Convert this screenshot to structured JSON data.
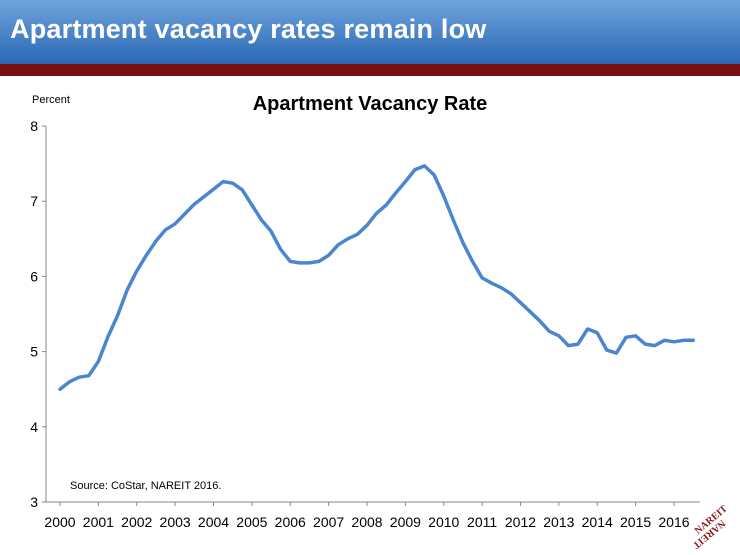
{
  "banner": {
    "title": "Apartment vacancy rates remain low"
  },
  "colors": {
    "banner_top": "#6fa3dc",
    "banner_bottom": "#2a68b4",
    "stripe": "#7a0f12",
    "line": "#4a86d0",
    "logo": "#8b1a1a"
  },
  "logo": {
    "text": "NAREIT",
    "icon": "nareit-logo"
  },
  "chart_data": {
    "type": "line",
    "title": "Apartment Vacancy Rate",
    "ylabel": "Percent",
    "xlabel": "",
    "source": "Source: CoStar, NAREIT 2016.",
    "ylim": [
      3,
      8
    ],
    "xlim": [
      2000,
      2016.6
    ],
    "y_ticks": [
      3,
      4,
      5,
      6,
      7,
      8
    ],
    "x_ticks": [
      "2000",
      "2001",
      "2002",
      "2003",
      "2004",
      "2005",
      "2006",
      "2007",
      "2008",
      "2009",
      "2010",
      "2011",
      "2012",
      "2013",
      "2014",
      "2015",
      "2016"
    ],
    "grid": false,
    "legend": "none",
    "series": [
      {
        "x": [
          2000,
          2000.25,
          2000.5,
          2000.75,
          2001,
          2001.25,
          2001.5,
          2001.75,
          2002,
          2002.25,
          2002.5,
          2002.75,
          2003,
          2003.25,
          2003.5,
          2003.75,
          2004,
          2004.25,
          2004.5,
          2004.75,
          2005,
          2005.25,
          2005.5,
          2005.75,
          2006,
          2006.25,
          2006.5,
          2006.75,
          2007,
          2007.25,
          2007.5,
          2007.75,
          2008,
          2008.25,
          2008.5,
          2008.75,
          2009,
          2009.25,
          2009.5,
          2009.75,
          2010,
          2010.25,
          2010.5,
          2010.75,
          2011,
          2011.25,
          2011.5,
          2011.75,
          2012,
          2012.25,
          2012.5,
          2012.75,
          2013,
          2013.25,
          2013.5,
          2013.75,
          2014,
          2014.25,
          2014.5,
          2014.75,
          2015,
          2015.25,
          2015.5,
          2015.75,
          2016,
          2016.25,
          2016.5
        ],
        "values": [
          4.5,
          4.6,
          4.66,
          4.68,
          4.87,
          5.2,
          5.48,
          5.82,
          6.07,
          6.28,
          6.47,
          6.62,
          6.7,
          6.83,
          6.96,
          7.06,
          7.16,
          7.26,
          7.24,
          7.15,
          6.95,
          6.75,
          6.6,
          6.36,
          6.2,
          6.18,
          6.18,
          6.2,
          6.28,
          6.42,
          6.5,
          6.56,
          6.68,
          6.84,
          6.95,
          7.11,
          7.26,
          7.42,
          7.47,
          7.35,
          7.07,
          6.75,
          6.45,
          6.2,
          5.98,
          5.91,
          5.85,
          5.77,
          5.65,
          5.53,
          5.41,
          5.27,
          5.21,
          5.08,
          5.1,
          5.3,
          5.25,
          5.02,
          4.98,
          5.19,
          5.21,
          5.1,
          5.08,
          5.15,
          5.13,
          5.15,
          5.15
        ]
      }
    ]
  }
}
